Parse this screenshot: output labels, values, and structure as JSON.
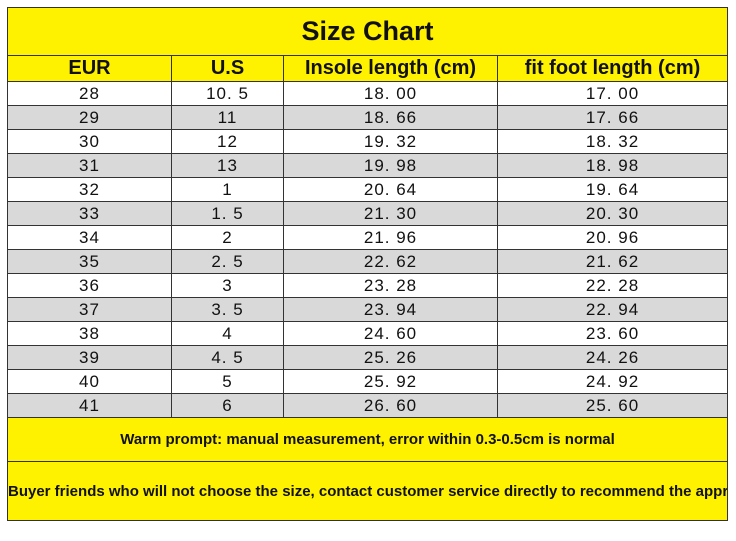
{
  "title": "Size Chart",
  "headers": [
    "EUR",
    "U.S",
    "Insole length (cm)",
    "fit foot length (cm)"
  ],
  "rows": [
    [
      "28",
      "10. 5",
      "18. 00",
      "17. 00"
    ],
    [
      "29",
      "11",
      "18. 66",
      "17. 66"
    ],
    [
      "30",
      "12",
      "19. 32",
      "18. 32"
    ],
    [
      "31",
      "13",
      "19. 98",
      "18. 98"
    ],
    [
      "32",
      "1",
      "20. 64",
      "19. 64"
    ],
    [
      "33",
      "1. 5",
      "21. 30",
      "20. 30"
    ],
    [
      "34",
      "2",
      "21. 96",
      "20. 96"
    ],
    [
      "35",
      "2. 5",
      "22. 62",
      "21. 62"
    ],
    [
      "36",
      "3",
      "23. 28",
      "22. 28"
    ],
    [
      "37",
      "3. 5",
      "23. 94",
      "22. 94"
    ],
    [
      "38",
      "4",
      "24. 60",
      "23. 60"
    ],
    [
      "39",
      "4. 5",
      "25. 26",
      "24. 26"
    ],
    [
      "40",
      "5",
      "25. 92",
      "24. 92"
    ],
    [
      "41",
      "6",
      "26. 60",
      "25. 60"
    ]
  ],
  "notes": {
    "prompt": "Warm prompt: manual measurement, error within 0.3-0.5cm is normal",
    "advice": "Buyer friends who will not choose the size, contact customer service directly to recommend the appropriate size for you"
  },
  "colors": {
    "header_yellow": "#fff200",
    "row_gray": "#d9d9d9",
    "border": "#333333"
  }
}
